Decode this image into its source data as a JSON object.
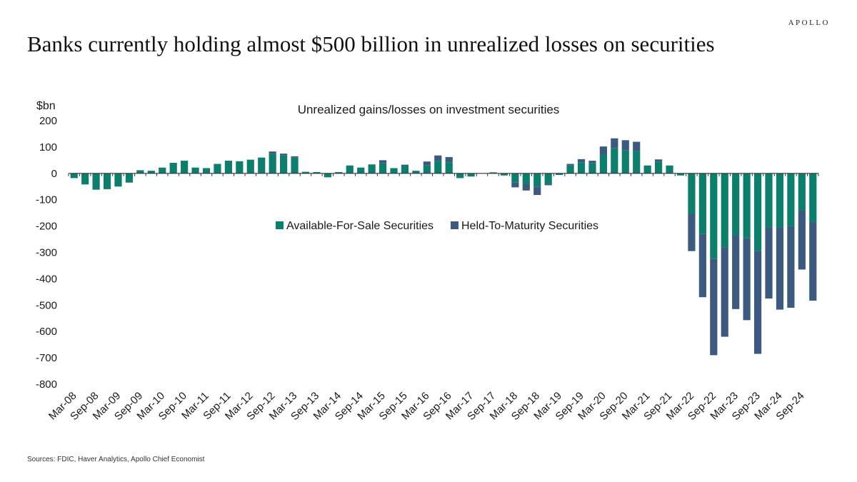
{
  "brand": "APOLLO",
  "headline": "Banks currently holding almost $500 billion in unrealized losses on securities",
  "source": "Sources: FDIC, Haver Analytics, Apollo Chief Economist",
  "colors": {
    "afs": "#0b7f6c",
    "htm": "#3c5a80",
    "axis": "#333333"
  },
  "chart_data": {
    "type": "bar",
    "stacked": true,
    "title": "Unrealized gains/losses on investment securities",
    "ylabel": "$bn",
    "ylim": [
      -800,
      200
    ],
    "yticks": [
      200,
      100,
      0,
      -100,
      -200,
      -300,
      -400,
      -500,
      -600,
      -700,
      -800
    ],
    "legend_position": "center",
    "x_tick_labels": [
      "Mar-08",
      "Sep-08",
      "Mar-09",
      "Sep-09",
      "Mar-10",
      "Sep-10",
      "Mar-11",
      "Sep-11",
      "Mar-12",
      "Sep-12",
      "Mar-13",
      "Sep-13",
      "Mar-14",
      "Sep-14",
      "Mar-15",
      "Sep-15",
      "Mar-16",
      "Sep-16",
      "Mar-17",
      "Sep-17",
      "Mar-18",
      "Sep-18",
      "Mar-19",
      "Sep-19",
      "Mar-20",
      "Sep-20",
      "Mar-21",
      "Sep-21",
      "Mar-22",
      "Sep-22",
      "Mar-23",
      "Sep-23",
      "Mar-24",
      "Sep-24"
    ],
    "categories": [
      "Mar-08",
      "Jun-08",
      "Sep-08",
      "Dec-08",
      "Mar-09",
      "Jun-09",
      "Sep-09",
      "Dec-09",
      "Mar-10",
      "Jun-10",
      "Sep-10",
      "Dec-10",
      "Mar-11",
      "Jun-11",
      "Sep-11",
      "Dec-11",
      "Mar-12",
      "Jun-12",
      "Sep-12",
      "Dec-12",
      "Mar-13",
      "Jun-13",
      "Sep-13",
      "Dec-13",
      "Mar-14",
      "Jun-14",
      "Sep-14",
      "Dec-14",
      "Mar-15",
      "Jun-15",
      "Sep-15",
      "Dec-15",
      "Mar-16",
      "Jun-16",
      "Sep-16",
      "Dec-16",
      "Mar-17",
      "Jun-17",
      "Sep-17",
      "Dec-17",
      "Mar-18",
      "Jun-18",
      "Sep-18",
      "Dec-18",
      "Mar-19",
      "Jun-19",
      "Sep-19",
      "Dec-19",
      "Mar-20",
      "Jun-20",
      "Sep-20",
      "Dec-20",
      "Mar-21",
      "Jun-21",
      "Sep-21",
      "Dec-21",
      "Mar-22",
      "Jun-22",
      "Sep-22",
      "Dec-22",
      "Mar-23",
      "Jun-23",
      "Sep-23",
      "Dec-23",
      "Mar-24",
      "Jun-24",
      "Sep-24",
      "Dec-24"
    ],
    "series": [
      {
        "name": "Available-For-Sale Securities",
        "color": "#0b7f6c",
        "values": [
          -18,
          -42,
          -62,
          -60,
          -50,
          -35,
          12,
          10,
          22,
          40,
          48,
          22,
          20,
          36,
          48,
          46,
          52,
          60,
          75,
          68,
          60,
          6,
          5,
          -15,
          5,
          30,
          22,
          34,
          38,
          20,
          28,
          10,
          30,
          48,
          42,
          -18,
          -12,
          0,
          4,
          -8,
          -35,
          -40,
          -50,
          -40,
          -6,
          30,
          42,
          38,
          70,
          95,
          88,
          85,
          30,
          45,
          30,
          -8,
          -155,
          -230,
          -325,
          -280,
          -235,
          -245,
          -295,
          -205,
          -205,
          -200,
          -140,
          -185
        ]
      },
      {
        "name": "Held-To-Maturity Securities",
        "color": "#3c5a80",
        "values": [
          0,
          0,
          0,
          0,
          0,
          0,
          0,
          0,
          0,
          0,
          0,
          0,
          0,
          0,
          0,
          0,
          0,
          0,
          8,
          7,
          5,
          0,
          0,
          0,
          0,
          0,
          0,
          0,
          12,
          0,
          5,
          0,
          15,
          20,
          20,
          0,
          0,
          0,
          0,
          0,
          -18,
          -25,
          -32,
          -5,
          0,
          6,
          12,
          10,
          32,
          38,
          38,
          35,
          0,
          8,
          0,
          0,
          -140,
          -240,
          -365,
          -340,
          -280,
          -312,
          -390,
          -270,
          -312,
          -310,
          -225,
          -298
        ]
      }
    ]
  }
}
